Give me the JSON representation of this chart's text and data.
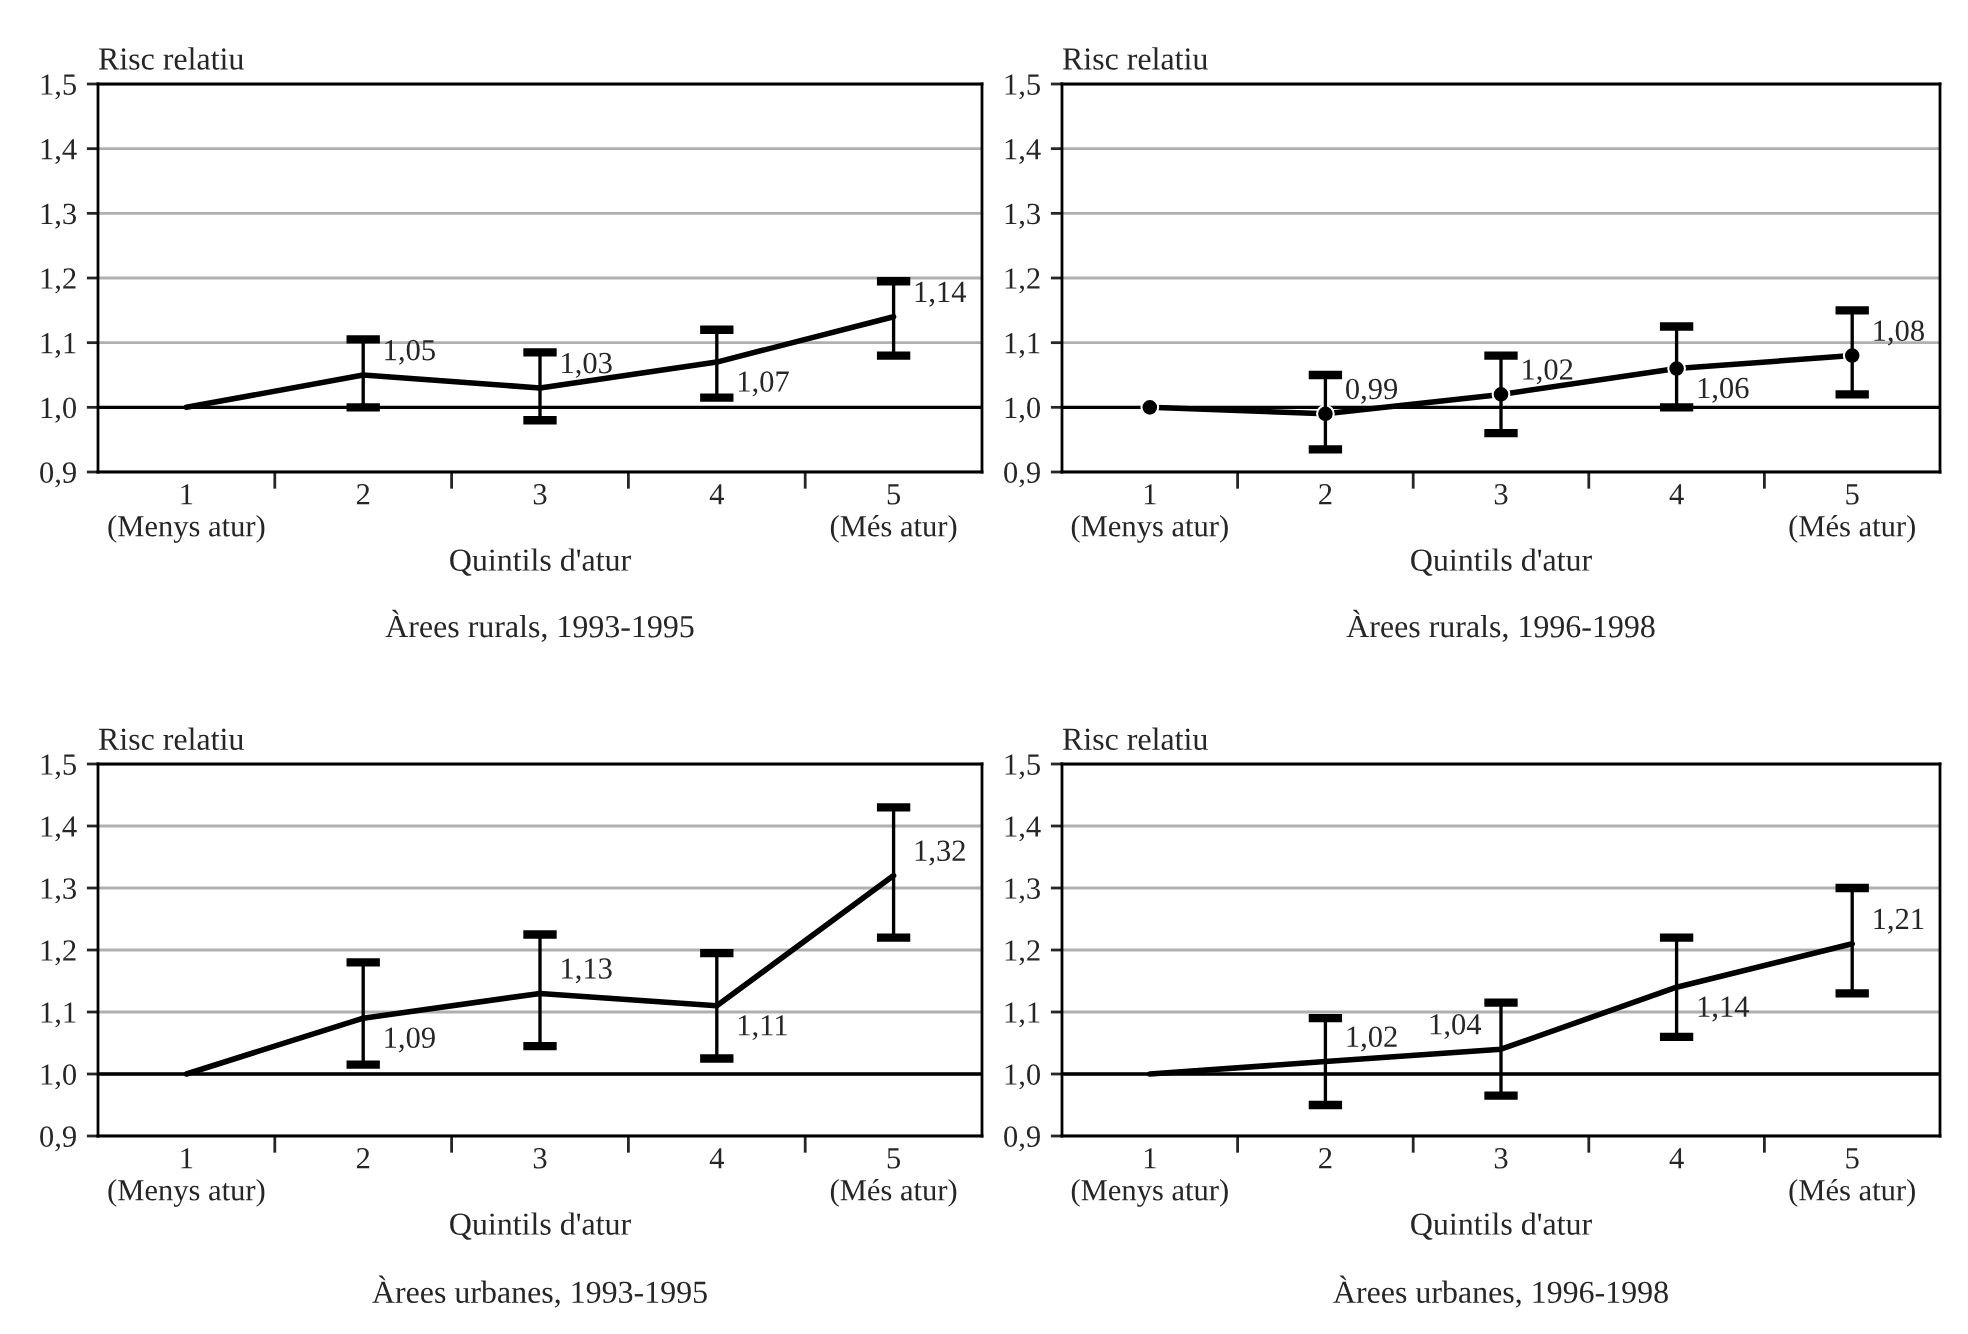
{
  "chart_data": [
    {
      "type": "line",
      "title": "Àrees rurals, 1993-1995",
      "xlabel": "Quintils d'atur",
      "ylabel": "Risc relatiu",
      "categories": [
        "1\n(Menys atur)",
        "2",
        "3",
        "4",
        "5\n(Més atur)"
      ],
      "series": [
        {
          "color": "#000000",
          "values": [
            1.0,
            1.05,
            1.03,
            1.07,
            1.14
          ],
          "errors": [
            null,
            [
              1.0,
              1.105
            ],
            [
              0.98,
              1.085
            ],
            [
              1.015,
              1.12
            ],
            [
              1.08,
              1.195
            ]
          ],
          "value_labels": [
            null,
            "1,05",
            "1,03",
            "1,07",
            "1,14"
          ]
        }
      ],
      "ylim": [
        0.9,
        1.5
      ],
      "yticks": [
        {
          "value": 0.9,
          "label": "0,9"
        },
        {
          "value": 1.0,
          "label": "1,0"
        },
        {
          "value": 1.1,
          "label": "1,1"
        },
        {
          "value": 1.2,
          "label": "1,2"
        },
        {
          "value": 1.3,
          "label": "1,3"
        },
        {
          "value": 1.4,
          "label": "1,4"
        },
        {
          "value": 1.5,
          "label": "1,5"
        }
      ],
      "grid": "y",
      "ref_lines": [
        {
          "axis": "y",
          "value": 1.0,
          "color": "#000000"
        }
      ]
    },
    {
      "type": "line",
      "title": "Àrees rurals, 1996-1998",
      "xlabel": "Quintils d'atur",
      "ylabel": "Risc relatiu",
      "categories": [
        "1\n(Menys atur)",
        "2",
        "3",
        "4",
        "5\n(Més atur)"
      ],
      "series": [
        {
          "color": "#000000",
          "values": [
            1.0,
            0.99,
            1.02,
            1.06,
            1.08
          ],
          "errors": [
            null,
            [
              0.935,
              1.05
            ],
            [
              0.96,
              1.08
            ],
            [
              1.0,
              1.125
            ],
            [
              1.02,
              1.15
            ]
          ],
          "value_labels": [
            null,
            "0,99",
            "1,02",
            "1,06",
            "1,08"
          ]
        }
      ],
      "ylim": [
        0.9,
        1.5
      ],
      "yticks": [
        {
          "value": 0.9,
          "label": "0,9"
        },
        {
          "value": 1.0,
          "label": "1,0"
        },
        {
          "value": 1.1,
          "label": "1,1"
        },
        {
          "value": 1.2,
          "label": "1,2"
        },
        {
          "value": 1.3,
          "label": "1,3"
        },
        {
          "value": 1.4,
          "label": "1,4"
        },
        {
          "value": 1.5,
          "label": "1,5"
        }
      ],
      "grid": "y",
      "marker": "circle",
      "ref_lines": [
        {
          "axis": "y",
          "value": 1.0,
          "color": "#000000"
        }
      ]
    },
    {
      "type": "line",
      "title": "Àrees urbanes, 1993-1995",
      "xlabel": "Quintils d'atur",
      "ylabel": "Risc relatiu",
      "categories": [
        "1\n(Menys atur)",
        "2",
        "3",
        "4",
        "5\n(Més atur)"
      ],
      "series": [
        {
          "color": "#000000",
          "values": [
            1.0,
            1.09,
            1.13,
            1.11,
            1.32
          ],
          "errors": [
            null,
            [
              1.015,
              1.18
            ],
            [
              1.045,
              1.225
            ],
            [
              1.025,
              1.195
            ],
            [
              1.22,
              1.43
            ]
          ],
          "value_labels": [
            null,
            "1,09",
            "1,13",
            "1,11",
            "1,32"
          ]
        }
      ],
      "ylim": [
        0.9,
        1.5
      ],
      "yticks": [
        {
          "value": 0.9,
          "label": "0,9"
        },
        {
          "value": 1.0,
          "label": "1,0"
        },
        {
          "value": 1.1,
          "label": "1,1"
        },
        {
          "value": 1.2,
          "label": "1,2"
        },
        {
          "value": 1.3,
          "label": "1,3"
        },
        {
          "value": 1.4,
          "label": "1,4"
        },
        {
          "value": 1.5,
          "label": "1,5"
        }
      ],
      "grid": "y",
      "ref_lines": [
        {
          "axis": "y",
          "value": 1.0,
          "color": "#000000"
        }
      ]
    },
    {
      "type": "line",
      "title": "Àrees urbanes, 1996-1998",
      "xlabel": "Quintils d'atur",
      "ylabel": "Risc relatiu",
      "categories": [
        "1\n(Menys atur)",
        "2",
        "3",
        "4",
        "5\n(Més atur)"
      ],
      "series": [
        {
          "color": "#000000",
          "values": [
            1.0,
            1.02,
            1.04,
            1.14,
            1.21
          ],
          "errors": [
            null,
            [
              0.95,
              1.09
            ],
            [
              0.965,
              1.115
            ],
            [
              1.06,
              1.22
            ],
            [
              1.13,
              1.3
            ]
          ],
          "value_labels": [
            null,
            "1,02",
            "1,04",
            "1,14",
            "1,21"
          ]
        }
      ],
      "ylim": [
        0.9,
        1.5
      ],
      "yticks": [
        {
          "value": 0.9,
          "label": "0,9"
        },
        {
          "value": 1.0,
          "label": "1,0"
        },
        {
          "value": 1.1,
          "label": "1,1"
        },
        {
          "value": 1.2,
          "label": "1,2"
        },
        {
          "value": 1.3,
          "label": "1,3"
        },
        {
          "value": 1.4,
          "label": "1,4"
        },
        {
          "value": 1.5,
          "label": "1,5"
        }
      ],
      "grid": "y",
      "ref_lines": [
        {
          "axis": "y",
          "value": 1.0,
          "color": "#000000"
        }
      ]
    }
  ]
}
